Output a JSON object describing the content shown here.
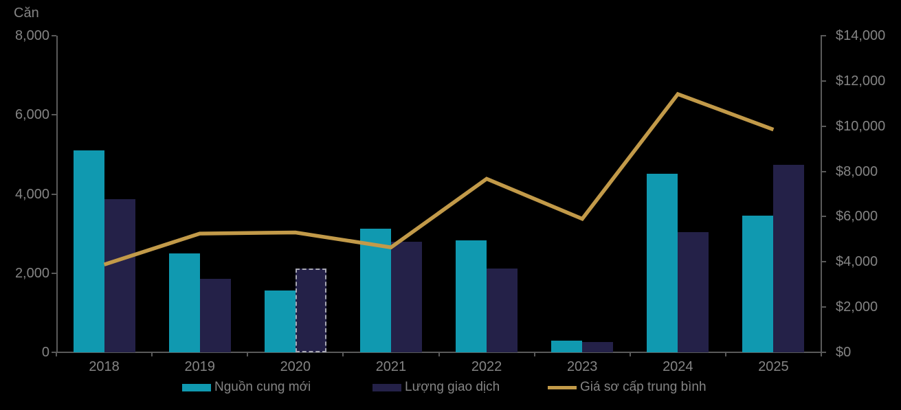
{
  "page": {
    "background": "#000000"
  },
  "chart_data": {
    "type": "bar+line",
    "categories": [
      "2018",
      "2019",
      "2020",
      "2021",
      "2022",
      "2023",
      "2024",
      "2025"
    ],
    "series": [
      {
        "name": "Nguồn cung mới",
        "type": "bar",
        "axis": "left",
        "color_key": "new_supply",
        "values": [
          5100,
          2500,
          1560,
          3130,
          2830,
          295,
          4510,
          3460
        ]
      },
      {
        "name": "Lượng giao dịch",
        "type": "bar",
        "axis": "left",
        "color_key": "transactions",
        "values": [
          3870,
          1860,
          2110,
          2800,
          2120,
          260,
          3040,
          4740
        ],
        "dashed_categories": [
          "2020"
        ]
      },
      {
        "name": "Giá sơ cấp trung bình",
        "type": "line",
        "axis": "right",
        "color_key": "price_line",
        "values": [
          3880,
          5250,
          5300,
          4640,
          7670,
          5900,
          11420,
          9850
        ]
      }
    ],
    "left_axis": {
      "title": "Căn",
      "min": 0,
      "max": 8000,
      "tick_values": [
        0,
        2000,
        4000,
        6000,
        8000
      ],
      "tick_labels": [
        "0",
        "2,000",
        "4,000",
        "6,000",
        "8,000"
      ]
    },
    "right_axis": {
      "min": 0,
      "max": 14000,
      "tick_values": [
        0,
        2000,
        4000,
        6000,
        8000,
        10000,
        12000,
        14000
      ],
      "tick_labels": [
        "$0",
        "$2,000",
        "$4,000",
        "$6,000",
        "$8,000",
        "$10,000",
        "$12,000",
        "$14,000"
      ]
    },
    "grid": "off",
    "legend_position": "bottom",
    "colors": {
      "new_supply": "#1099B0",
      "transactions": "#242148",
      "price_line": "#C29A49",
      "text": "#848484",
      "axis": "#5A5A5A",
      "dashed_border": "#A8A8B4",
      "background": "#000000"
    }
  }
}
